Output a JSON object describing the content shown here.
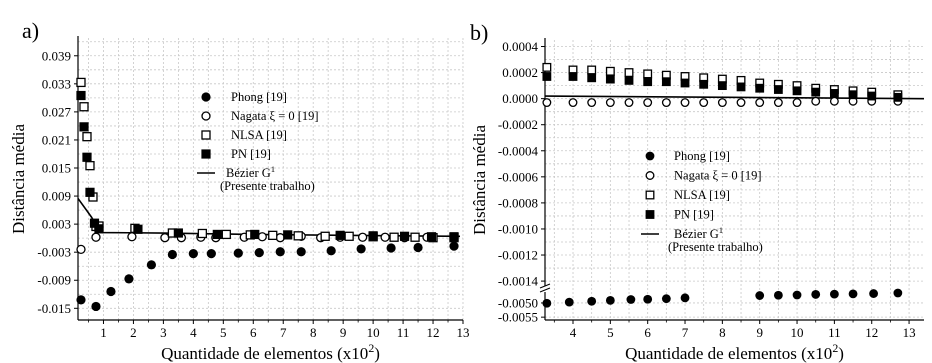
{
  "chart_data": [
    {
      "panel": "a)",
      "type": "scatter",
      "xlabel": "Quantidade de elementos (x10²)",
      "ylabel": "Distância média",
      "xlim": [
        0.15,
        13
      ],
      "ylim": [
        -0.0175,
        0.0428
      ],
      "xticks": [
        1,
        2,
        3,
        4,
        5,
        6,
        7,
        8,
        9,
        10,
        11,
        12,
        13
      ],
      "yticks": [
        -0.015,
        -0.009,
        -0.003,
        0.003,
        0.009,
        0.015,
        0.021,
        0.027,
        0.033,
        0.039
      ],
      "ytick_labels": [
        "-0.015",
        "-0.009",
        "-0.003",
        "0.003",
        "0.009",
        "0.015",
        "0.021",
        "0.027",
        "0.033",
        "0.039"
      ],
      "grid": true,
      "legend_position": "center-right",
      "series": [
        {
          "name": "Phong [19]",
          "marker": "filled-circle",
          "x": [
            0.25,
            0.75,
            1.25,
            1.85,
            2.6,
            3.3,
            4.0,
            4.6,
            5.5,
            6.2,
            6.9,
            7.6,
            8.6,
            9.6,
            10.6,
            11.5,
            12.7
          ],
          "y": [
            -0.0132,
            -0.0146,
            -0.0114,
            -0.0087,
            -0.0057,
            -0.0035,
            -0.0033,
            -0.0033,
            -0.0032,
            -0.0031,
            -0.0029,
            -0.0029,
            -0.0027,
            -0.0023,
            -0.0021,
            -0.002,
            -0.0017
          ]
        },
        {
          "name": "Nagata ξ = 0 [19]",
          "marker": "open-circle",
          "x": [
            0.25,
            0.75,
            1.95,
            3.05,
            3.6,
            4.25,
            4.75,
            5.7,
            6.3,
            6.9,
            7.6,
            8.25,
            8.9,
            9.65,
            10.4,
            11.05,
            11.8,
            12.7
          ],
          "y": [
            -0.0024,
            0.0002,
            0.0003,
            0.0001,
            0.0001,
            0.0002,
            0.0001,
            0.0002,
            0.0003,
            0.0001,
            0.0004,
            0.0001,
            0.0002,
            0.0002,
            0.0002,
            0.0001,
            0.0002,
            0.0002
          ]
        },
        {
          "name": "NLSA [19]",
          "marker": "open-square",
          "x": [
            0.25,
            0.35,
            0.45,
            0.55,
            0.65,
            0.75,
            0.85,
            2.05,
            3.3,
            4.3,
            5.1,
            5.9,
            6.65,
            7.5,
            8.4,
            9.2,
            10.0,
            10.7,
            11.4,
            12.0,
            12.7
          ],
          "y": [
            0.0333,
            0.0281,
            0.0217,
            0.0155,
            0.0088,
            0.0025,
            0.0026,
            0.0021,
            0.0011,
            0.001,
            0.0008,
            0.0007,
            0.0006,
            0.0005,
            0.0004,
            0.0004,
            0.0003,
            0.0002,
            0.0002,
            0.0001,
            0.0001
          ]
        },
        {
          "name": "PN [19]",
          "marker": "filled-square",
          "x": [
            0.25,
            0.35,
            0.45,
            0.55,
            0.7,
            0.85,
            2.15,
            3.5,
            4.8,
            6.05,
            7.15,
            8.9,
            10.0,
            11.05,
            11.95,
            12.7
          ],
          "y": [
            0.0305,
            0.0238,
            0.0173,
            0.0098,
            0.0032,
            0.002,
            0.0019,
            0.0011,
            0.0008,
            0.0008,
            0.0007,
            0.0006,
            0.0005,
            0.0004,
            0.0003,
            0.0003
          ]
        },
        {
          "name": "Bézier G¹ (Presente trabalho)",
          "marker": "line",
          "x": [
            0.15,
            0.6,
            0.9,
            3.0,
            6.0,
            9.0,
            12.9
          ],
          "y": [
            0.0085,
            0.0045,
            0.0012,
            0.0011,
            0.0008,
            0.0006,
            0.0004
          ]
        }
      ]
    },
    {
      "panel": "b)",
      "type": "scatter",
      "xlabel": "Quantidade de elementos (x10²)",
      "ylabel": "Distância média",
      "xlim": [
        3.25,
        13.4
      ],
      "ylim_upper": [
        -0.00143,
        0.00045
      ],
      "ylim_lower": [
        -0.0056,
        -0.00465
      ],
      "broken_axis": true,
      "xticks": [
        4,
        5,
        6,
        7,
        8,
        9,
        10,
        11,
        12,
        13
      ],
      "yticks_upper": [
        -0.0014,
        -0.0012,
        -0.001,
        -0.0008,
        -0.0006,
        -0.0004,
        -0.0002,
        0.0,
        0.0002,
        0.0004
      ],
      "ytick_labels_upper": [
        "-0.0014",
        "-0.0012",
        "-0.0010",
        "-0.0008",
        "-0.0006",
        "-0.0004",
        "-0.0002",
        "0.0000",
        "0.0002",
        "0.0004"
      ],
      "yticks_lower": [
        -0.005,
        -0.0055
      ],
      "ytick_labels_lower": [
        "-0.0050",
        "-0.0055"
      ],
      "grid": true,
      "legend_position": "center-left",
      "series": [
        {
          "name": "Phong [19]",
          "marker": "filled-circle",
          "x": [
            3.3,
            3.9,
            4.5,
            5.0,
            5.55,
            6.0,
            6.5,
            7.0,
            9.0,
            9.5,
            10.0,
            10.5,
            11.0,
            11.5,
            12.05,
            12.7
          ],
          "y": [
            -0.00501,
            -0.00497,
            -0.00494,
            -0.00491,
            -0.00488,
            -0.00487,
            -0.00485,
            -0.00482,
            -0.00474,
            -0.00473,
            -0.00472,
            -0.0047,
            -0.00469,
            -0.00468,
            -0.00467,
            -0.00465
          ]
        },
        {
          "name": "Nagata ξ = 0 [19]",
          "marker": "open-circle",
          "x": [
            3.3,
            4.0,
            4.5,
            5.0,
            5.5,
            6.0,
            6.5,
            7.0,
            7.5,
            8.0,
            8.5,
            9.0,
            9.5,
            10.0,
            10.5,
            11.0,
            11.5,
            12.0,
            12.7
          ],
          "y": [
            -3e-05,
            -3e-05,
            -3e-05,
            -3e-05,
            -3e-05,
            -3e-05,
            -3e-05,
            -3e-05,
            -3e-05,
            -3e-05,
            -3e-05,
            -3e-05,
            -3e-05,
            -3e-05,
            -2e-05,
            -2e-05,
            -2e-05,
            -2e-05,
            -2e-05
          ]
        },
        {
          "name": "NLSA [19]",
          "marker": "open-square",
          "x": [
            3.3,
            4.0,
            4.5,
            5.0,
            5.5,
            6.0,
            6.5,
            7.0,
            7.5,
            8.0,
            8.5,
            9.0,
            9.5,
            10.0,
            10.5,
            11.0,
            11.5,
            12.0,
            12.7
          ],
          "y": [
            0.00024,
            0.00022,
            0.00022,
            0.00021,
            0.0002,
            0.00019,
            0.00018,
            0.00017,
            0.00016,
            0.00015,
            0.00014,
            0.00012,
            0.00011,
            0.0001,
            8e-05,
            7e-05,
            6e-05,
            5e-05,
            3e-05
          ]
        },
        {
          "name": "PN [19]",
          "marker": "filled-square",
          "x": [
            3.3,
            4.0,
            4.5,
            5.0,
            5.5,
            6.0,
            6.5,
            7.0,
            7.5,
            8.0,
            8.5,
            9.0,
            9.5,
            10.0,
            10.5,
            11.0,
            11.5,
            12.0,
            12.7
          ],
          "y": [
            0.00017,
            0.00017,
            0.00016,
            0.00015,
            0.00014,
            0.00013,
            0.00013,
            0.00012,
            0.00011,
            0.0001,
            9e-05,
            8e-05,
            7e-05,
            6e-05,
            5e-05,
            4e-05,
            3e-05,
            2e-05,
            1e-05
          ]
        },
        {
          "name": "Bézier G¹ (Presente trabalho)",
          "marker": "line",
          "x": [
            3.25,
            13.4
          ],
          "y": [
            2e-05,
            0.0
          ]
        }
      ]
    }
  ]
}
